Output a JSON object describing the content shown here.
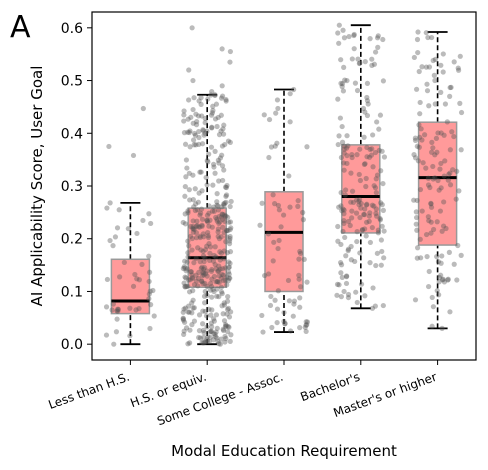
{
  "panel_label": "A",
  "colors": {
    "box_fill": "#ff9a9a",
    "box_edge": "#999999",
    "median": "#000000",
    "point": "#555555",
    "axis": "#000000"
  },
  "chart_data": {
    "type": "box",
    "title": "",
    "xlabel": "Modal Education Requirement",
    "ylabel": "AI Applicability Score, User Goal",
    "ylim": [
      -0.03,
      0.63
    ],
    "yticks": [
      0.0,
      0.1,
      0.2,
      0.3,
      0.4,
      0.5,
      0.6
    ],
    "ytick_labels": [
      "0.0",
      "0.1",
      "0.2",
      "0.3",
      "0.4",
      "0.5",
      "0.6"
    ],
    "grid": false,
    "overlay": "jittered scatter points",
    "categories": [
      "Less than H.S.",
      "H.S. or equiv.",
      "Some College - Assoc.",
      "Bachelor's",
      "Master's or higher"
    ],
    "boxes": [
      {
        "category": "Less than H.S.",
        "whisker_low": 0.0,
        "q1": 0.058,
        "median": 0.082,
        "q3": 0.161,
        "whisker_high": 0.268,
        "outliers": [
          0.358,
          0.375,
          0.447
        ],
        "n_points": 45
      },
      {
        "category": "H.S. or equiv.",
        "whisker_low": 0.0,
        "q1": 0.108,
        "median": 0.164,
        "q3": 0.258,
        "whisker_high": 0.473,
        "outliers": [
          0.479,
          0.49,
          0.5,
          0.52,
          0.535,
          0.555,
          0.56,
          0.6
        ],
        "n_points": 420
      },
      {
        "category": "Some College - Assoc.",
        "whisker_low": 0.023,
        "q1": 0.1,
        "median": 0.212,
        "q3": 0.289,
        "whisker_high": 0.483,
        "outliers": [],
        "n_points": 70
      },
      {
        "category": "Bachelor's",
        "whisker_low": 0.068,
        "q1": 0.211,
        "median": 0.28,
        "q3": 0.378,
        "whisker_high": 0.605,
        "outliers": [],
        "n_points": 190
      },
      {
        "category": "Master's or higher",
        "whisker_low": 0.03,
        "q1": 0.188,
        "median": 0.316,
        "q3": 0.421,
        "whisker_high": 0.592,
        "outliers": [],
        "n_points": 140
      }
    ]
  }
}
